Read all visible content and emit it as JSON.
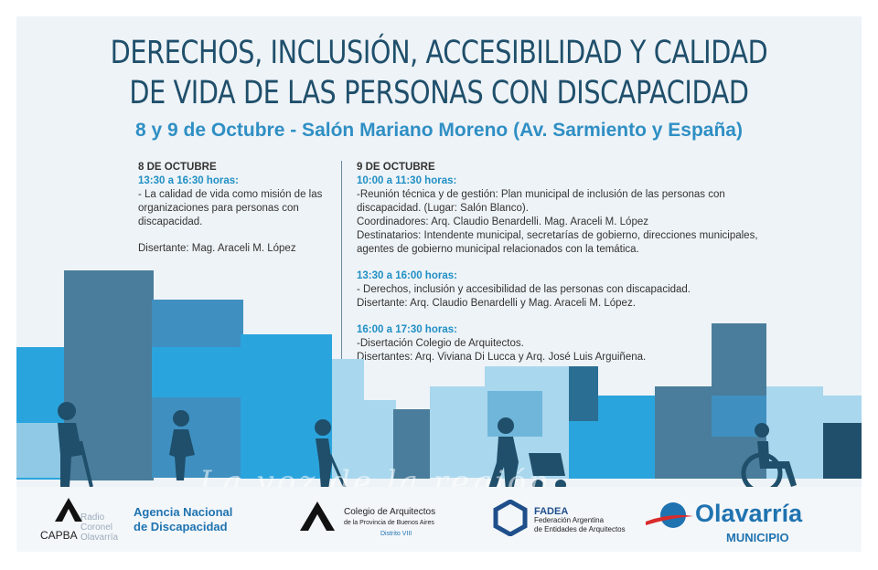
{
  "title": {
    "line1": "DERECHOS, INCLUSIÓN, ACCESIBILIDAD Y CALIDAD",
    "line2": "DE VIDA DE LAS PERSONAS CON DISCAPACIDAD"
  },
  "subtitle": "8 y 9 de Octubre - Salón Mariano Moreno (Av. Sarmiento y España)",
  "day1": {
    "heading": "8 DE OCTUBRE",
    "time": "13:30 a 16:30 horas:",
    "lines": [
      "- La calidad de vida como misión de las",
      "organizaciones para personas con",
      "discapacidad."
    ],
    "speaker": "Disertante: Mag. Araceli M. López"
  },
  "day2": {
    "heading": "9 DE OCTUBRE",
    "block1": {
      "time": "10:00 a 11:30 horas:",
      "lines": [
        "-Reunión técnica y de gestión: Plan municipal de inclusión de las personas con",
        "discapacidad. (Lugar: Salón Blanco).",
        "Coordinadores: Arq. Claudio Benardelli. Mag. Araceli M. López",
        "Destinatarios: Intendente municipal, secretarías de gobierno, direcciones municipales,",
        "agentes de gobierno municipal relacionados con la temática."
      ]
    },
    "block2": {
      "time": "13:30 a 16:00 horas:",
      "lines": [
        "- Derechos, inclusión y accesibilidad de las personas con discapacidad.",
        "Disertante: Arq. Claudio Benardelli y Mag. Araceli M. López."
      ]
    },
    "block3": {
      "time": "16:00 a 17:30 horas:",
      "lines": [
        "-Disertación Colegio de Arquitectos.",
        "Disertantes: Arq. Viviana Di Lucca y Arq. José Luis Arguiñena."
      ]
    }
  },
  "watermark": "La voz de la región",
  "footer": {
    "capba": "CAPBA",
    "agencia": [
      "Agencia Nacional",
      "de Discapacidad"
    ],
    "colegio": [
      "Colegio de Arquitectos",
      "de la Provincia de Buenos Aires",
      "Distrito VIII"
    ],
    "fadea": [
      "FADEA",
      "Federación Argentina",
      "de Entidades de Arquitectos"
    ],
    "olavarria": "Olavarría",
    "municipio": "MUNICIPIO",
    "radio": [
      "Radio",
      "Coronel",
      "Olavarría"
    ]
  },
  "colors": {
    "navy": "#1f4f6b",
    "accent": "#2f8fc4",
    "steel": "#4a7d9b",
    "sky": "#2aa4dd",
    "pale": "#a9d7ee"
  }
}
